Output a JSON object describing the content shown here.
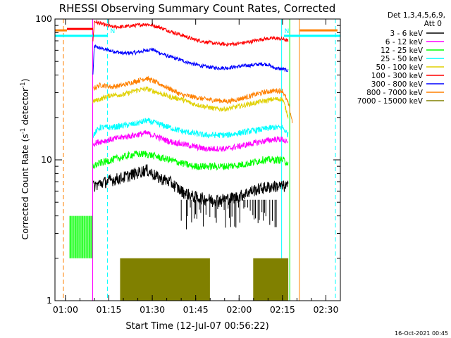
{
  "chart_data": {
    "type": "line",
    "title": "RHESSI Observing Summary Count Rates, Corrected",
    "xlabel": "Start Time (12-Jul-07 00:56:22)",
    "ylabel_main": "Corrected Count Rate (s",
    "ylabel_sup1": "-1",
    "ylabel_mid": " detector",
    "ylabel_sup2": "-1",
    "ylabel_end": ")",
    "yscale": "log",
    "ylim": [
      1,
      100
    ],
    "xlim_minutes": [
      56.37,
      155
    ],
    "x_ticks": [
      {
        "m": 60,
        "label": "01:00"
      },
      {
        "m": 75,
        "label": "01:15"
      },
      {
        "m": 90,
        "label": "01:30"
      },
      {
        "m": 105,
        "label": "01:45"
      },
      {
        "m": 120,
        "label": "02:00"
      },
      {
        "m": 135,
        "label": "02:15"
      },
      {
        "m": 150,
        "label": "02:30"
      }
    ],
    "y_ticks": [
      {
        "v": 1,
        "label": "1"
      },
      {
        "v": 10,
        "label": "10"
      },
      {
        "v": 100,
        "label": "100"
      }
    ],
    "legend_header": [
      "Det 1,3,4,5,6,9,",
      "Att 0"
    ],
    "grid": false,
    "legend_position": "top-right",
    "series": [
      {
        "name": "3 - 6 keV",
        "color": "#000000"
      },
      {
        "name": "6 - 12 keV",
        "color": "#ff00ff"
      },
      {
        "name": "12 - 25 keV",
        "color": "#00ff00"
      },
      {
        "name": "25 - 50 keV",
        "color": "#00ffff"
      },
      {
        "name": "50 - 100 keV",
        "color": "#e0d000"
      },
      {
        "name": "100 - 300 keV",
        "color": "#ff0000"
      },
      {
        "name": "300 - 800 keV",
        "color": "#0000ff"
      },
      {
        "name": "800 - 7000 keV",
        "color": "#ff8000"
      },
      {
        "name": "7000 - 15000 keV",
        "color": "#808000"
      }
    ],
    "curves": [
      {
        "series": 6,
        "noise": 0.03,
        "points": [
          [
            69.5,
            40
          ],
          [
            70,
            64
          ],
          [
            72,
            62
          ],
          [
            75,
            60
          ],
          [
            80,
            57
          ],
          [
            85,
            58
          ],
          [
            88,
            60
          ],
          [
            90,
            61
          ],
          [
            92,
            58
          ],
          [
            96,
            54
          ],
          [
            100,
            51
          ],
          [
            104,
            48
          ],
          [
            108,
            46
          ],
          [
            112,
            45
          ],
          [
            116,
            45
          ],
          [
            120,
            46
          ],
          [
            124,
            47
          ],
          [
            128,
            48
          ],
          [
            130,
            47.5
          ],
          [
            132,
            45
          ],
          [
            135,
            44
          ],
          [
            137,
            43
          ]
        ]
      },
      {
        "series": 5,
        "noise": 0.03,
        "points": [
          [
            69.5,
            70
          ],
          [
            70,
            96
          ],
          [
            72,
            93
          ],
          [
            76,
            88
          ],
          [
            80,
            88
          ],
          [
            84,
            90
          ],
          [
            88,
            92
          ],
          [
            92,
            88
          ],
          [
            96,
            82
          ],
          [
            100,
            77
          ],
          [
            104,
            72
          ],
          [
            108,
            69
          ],
          [
            112,
            67
          ],
          [
            116,
            66
          ],
          [
            120,
            67
          ],
          [
            124,
            69
          ],
          [
            128,
            72
          ],
          [
            132,
            73
          ],
          [
            135,
            72
          ],
          [
            137,
            70
          ]
        ]
      },
      {
        "series": 7,
        "noise": 0.04,
        "points": [
          [
            69.5,
            32
          ],
          [
            72,
            34
          ],
          [
            76,
            33
          ],
          [
            80,
            34
          ],
          [
            84,
            36
          ],
          [
            88,
            38
          ],
          [
            92,
            35
          ],
          [
            96,
            32
          ],
          [
            100,
            29
          ],
          [
            104,
            28
          ],
          [
            108,
            27
          ],
          [
            112,
            26.5
          ],
          [
            116,
            26
          ],
          [
            120,
            27
          ],
          [
            124,
            28.5
          ],
          [
            128,
            30
          ],
          [
            132,
            31
          ],
          [
            135,
            31
          ],
          [
            137,
            25
          ],
          [
            138.5,
            18
          ]
        ]
      },
      {
        "series": 4,
        "noise": 0.04,
        "points": [
          [
            69.5,
            26
          ],
          [
            72,
            27
          ],
          [
            76,
            29
          ],
          [
            80,
            29
          ],
          [
            84,
            31
          ],
          [
            88,
            32
          ],
          [
            92,
            30
          ],
          [
            96,
            28
          ],
          [
            100,
            27
          ],
          [
            104,
            25
          ],
          [
            108,
            24
          ],
          [
            112,
            23
          ],
          [
            116,
            23
          ],
          [
            120,
            24
          ],
          [
            124,
            25
          ],
          [
            128,
            26
          ],
          [
            132,
            27
          ],
          [
            135,
            27
          ],
          [
            137,
            20
          ]
        ]
      },
      {
        "series": 3,
        "noise": 0.05,
        "points": [
          [
            69.5,
            15
          ],
          [
            72,
            17
          ],
          [
            76,
            17
          ],
          [
            80,
            17.5
          ],
          [
            84,
            18
          ],
          [
            88,
            19
          ],
          [
            92,
            18
          ],
          [
            96,
            17
          ],
          [
            100,
            16
          ],
          [
            104,
            15.5
          ],
          [
            108,
            15
          ],
          [
            112,
            15
          ],
          [
            116,
            15
          ],
          [
            120,
            15.5
          ],
          [
            124,
            16
          ],
          [
            128,
            16.5
          ],
          [
            132,
            17
          ],
          [
            135,
            17
          ],
          [
            137,
            15
          ]
        ]
      },
      {
        "series": 1,
        "noise": 0.05,
        "points": [
          [
            69.5,
            13
          ],
          [
            72,
            13.5
          ],
          [
            76,
            14
          ],
          [
            80,
            14.5
          ],
          [
            84,
            15
          ],
          [
            88,
            15.5
          ],
          [
            92,
            14.5
          ],
          [
            96,
            13.5
          ],
          [
            100,
            13
          ],
          [
            104,
            12.5
          ],
          [
            108,
            12
          ],
          [
            112,
            12
          ],
          [
            116,
            12
          ],
          [
            120,
            12.5
          ],
          [
            124,
            13
          ],
          [
            128,
            13.5
          ],
          [
            132,
            14
          ],
          [
            135,
            14
          ],
          [
            137,
            13
          ]
        ]
      },
      {
        "series": 2,
        "noise": 0.06,
        "points": [
          [
            69.5,
            9
          ],
          [
            72,
            9.5
          ],
          [
            76,
            10
          ],
          [
            80,
            10.5
          ],
          [
            84,
            11
          ],
          [
            88,
            11
          ],
          [
            92,
            10.5
          ],
          [
            96,
            10
          ],
          [
            100,
            9.5
          ],
          [
            104,
            9
          ],
          [
            108,
            9
          ],
          [
            112,
            9
          ],
          [
            116,
            9
          ],
          [
            120,
            9.2
          ],
          [
            124,
            9.5
          ],
          [
            128,
            10
          ],
          [
            132,
            10
          ],
          [
            135,
            10
          ],
          [
            137,
            9.5
          ]
        ]
      },
      {
        "series": 0,
        "noise": 0.1,
        "points": [
          [
            69.5,
            6.5
          ],
          [
            72,
            6.8
          ],
          [
            76,
            7.2
          ],
          [
            80,
            7.5
          ],
          [
            84,
            8
          ],
          [
            88,
            8.5
          ],
          [
            92,
            7.5
          ],
          [
            96,
            7
          ],
          [
            100,
            6
          ],
          [
            104,
            5.5
          ],
          [
            108,
            5.3
          ],
          [
            112,
            5.2
          ],
          [
            116,
            5.3
          ],
          [
            120,
            5.5
          ],
          [
            124,
            6
          ],
          [
            128,
            6.3
          ],
          [
            132,
            6.5
          ],
          [
            135,
            6.5
          ],
          [
            137,
            6.5
          ]
        ]
      }
    ],
    "pre_flat": [
      {
        "series": 7,
        "value": 83,
        "from": 56.4,
        "to": 60.5
      },
      {
        "series": 5,
        "value": 85,
        "from": 60.5,
        "to": 69.5
      },
      {
        "series": 3,
        "value": 76,
        "from": 56.4,
        "to": 74.5
      },
      {
        "series": 7,
        "value": 83,
        "from": 141,
        "to": 154
      },
      {
        "series": 3,
        "value": 76,
        "from": 135.5,
        "to": 155
      }
    ],
    "green_blocks": [
      {
        "from": 61.5,
        "to": 69.5,
        "low": 2,
        "high": 4
      }
    ],
    "olive_blocks": [
      {
        "from": 79,
        "to": 110,
        "value": 2
      },
      {
        "from": 125,
        "to": 137,
        "value": 2
      }
    ],
    "markers": [
      {
        "m": 59.3,
        "color": "#ff8000",
        "style": "dash"
      },
      {
        "m": 69.4,
        "color": "#ff00ff",
        "style": "solid"
      },
      {
        "m": 74.5,
        "color": "#00ffff",
        "style": "dash",
        "label": "N"
      },
      {
        "m": 134.7,
        "color": "#00ffff",
        "style": "solid",
        "label": "N"
      },
      {
        "m": 137.5,
        "color": "#00ff00",
        "style": "solid"
      },
      {
        "m": 140.8,
        "color": "#ff8000",
        "style": "solid"
      },
      {
        "m": 153.3,
        "color": "#00ffff",
        "style": "dash"
      }
    ]
  },
  "footer": {
    "timestamp": "16-Oct-2021 00:45"
  }
}
